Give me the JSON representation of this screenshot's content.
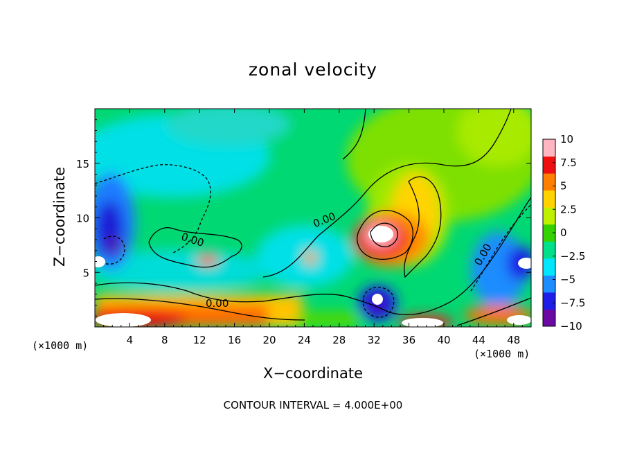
{
  "chart_data": {
    "type": "heatmap",
    "title": "zonal velocity",
    "xlabel": "X−coordinate",
    "ylabel": "Z−coordinate",
    "x_unit_note": "(×1000 m)",
    "footnote": "CONTOUR INTERVAL = 4.000E+00",
    "xlim": [
      0,
      50
    ],
    "ylim": [
      0,
      20
    ],
    "x_ticks": [
      4,
      8,
      12,
      16,
      20,
      24,
      28,
      32,
      36,
      40,
      44,
      48
    ],
    "y_ticks": [
      5,
      10,
      15
    ],
    "colorbar": {
      "range": [
        -10,
        10
      ],
      "tick_labels": [
        "10",
        "7.5",
        "5",
        "2.5",
        "0",
        "−2.5",
        "−5",
        "−7.5",
        "−10"
      ],
      "tick_values": [
        10,
        7.5,
        5,
        2.5,
        0,
        -2.5,
        -5,
        -7.5,
        -10
      ]
    },
    "contour_labels": [
      "0.00",
      "0.00",
      "0.00",
      "0.00"
    ],
    "contour_interval": 4.0,
    "features": [
      {
        "x": 33,
        "z": 8.5,
        "value": 10
      },
      {
        "x": 37,
        "z": 10,
        "value": 5
      },
      {
        "x": 2,
        "z": 10,
        "value": -8
      },
      {
        "x": 33,
        "z": 2.5,
        "value": -9
      },
      {
        "x": 5,
        "z": 1,
        "value": 10
      },
      {
        "x": 47,
        "z": 6,
        "value": -8
      }
    ]
  },
  "colors": {
    "scale": [
      "#6a0aa3",
      "#1e1ee6",
      "#1c8cff",
      "#00e6ff",
      "#00e08a",
      "#34d200",
      "#bff000",
      "#ffd200",
      "#ff8000",
      "#ee1010",
      "#ffb6c1"
    ]
  }
}
